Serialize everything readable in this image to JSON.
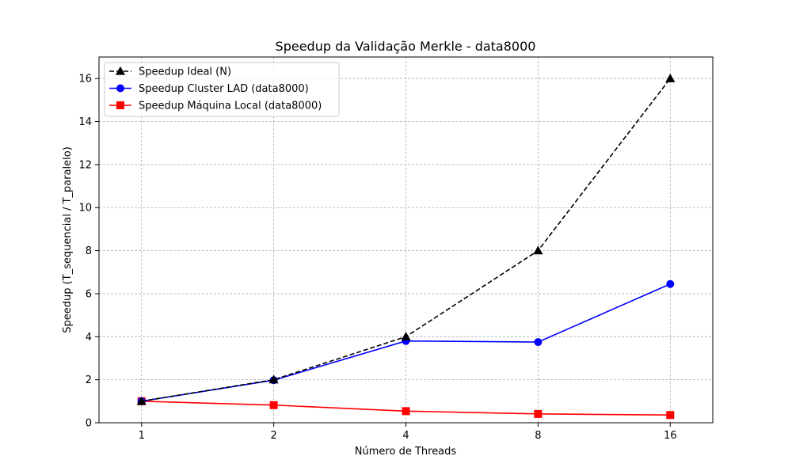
{
  "chart_data": {
    "type": "line",
    "title": "Speedup da Validação Merkle - data8000",
    "xlabel": "Número de Threads",
    "ylabel": "Speedup (T_sequencial / T_paralelo)",
    "x_scale": "log2",
    "x": [
      1,
      2,
      4,
      8,
      16
    ],
    "x_tick_labels": [
      "1",
      "2",
      "4",
      "8",
      "16"
    ],
    "xlim": [
      0.8,
      20
    ],
    "ylim": [
      0,
      17
    ],
    "y_ticks": [
      0,
      2,
      4,
      6,
      8,
      10,
      12,
      14,
      16
    ],
    "grid": true,
    "legend_position": "top-left",
    "series": [
      {
        "name": "Speedup Ideal (N)",
        "values": [
          1,
          2,
          4,
          8,
          16
        ],
        "color": "#000000",
        "line_style": "dashed",
        "marker": "triangle"
      },
      {
        "name": "Speedup Cluster LAD (data8000)",
        "values": [
          1,
          1.98,
          3.8,
          3.75,
          6.45
        ],
        "color": "#0000ff",
        "line_style": "solid",
        "marker": "circle"
      },
      {
        "name": "Speedup Máquina Local (data8000)",
        "values": [
          1,
          0.82,
          0.54,
          0.41,
          0.36
        ],
        "color": "#ff0000",
        "line_style": "solid",
        "marker": "square"
      }
    ]
  }
}
